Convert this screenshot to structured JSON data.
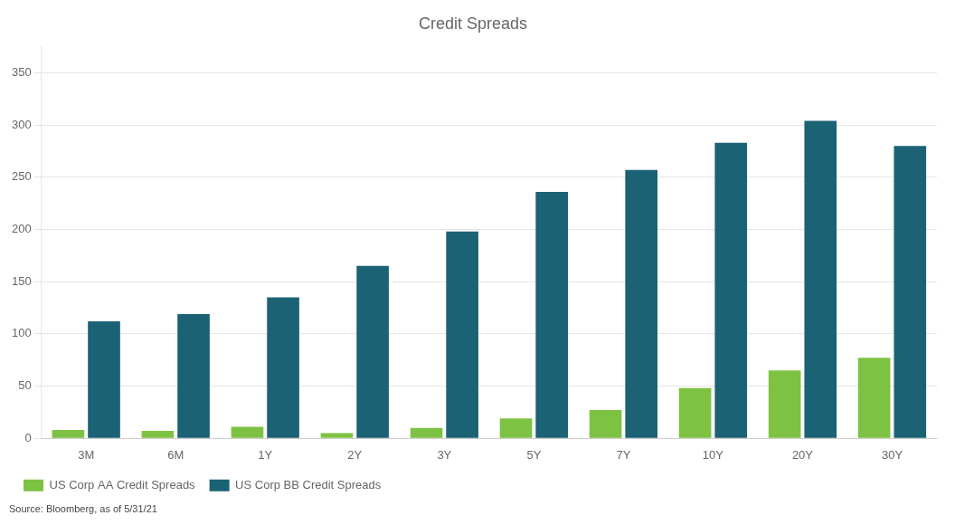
{
  "chart_data": {
    "type": "bar",
    "title": "Credit Spreads",
    "categories": [
      "3M",
      "6M",
      "1Y",
      "2Y",
      "3Y",
      "5Y",
      "7Y",
      "10Y",
      "20Y",
      "30Y"
    ],
    "series": [
      {
        "name": "US Corp AA Credit Spreads",
        "color": "#7DC242",
        "values": [
          8,
          7,
          11,
          5,
          10,
          19,
          27,
          48,
          65,
          77
        ]
      },
      {
        "name": "US Corp BB Credit Spreads",
        "color": "#1B6275",
        "values": [
          112,
          119,
          135,
          165,
          198,
          236,
          257,
          283,
          304,
          280
        ]
      }
    ],
    "ylim": [
      0,
      375
    ],
    "yticks": [
      0,
      50,
      100,
      150,
      200,
      250,
      300,
      350
    ],
    "grid": true,
    "legend": "bottom",
    "annotations": [
      "Source: Bloomberg, as of 5/31/21"
    ]
  }
}
